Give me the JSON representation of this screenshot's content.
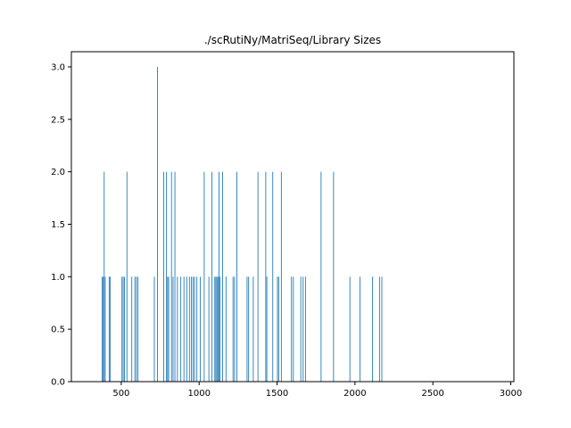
{
  "chart_data": {
    "type": "bar",
    "title": "./scRutiNy/MatriSeq/Library Sizes",
    "xlabel": "",
    "ylabel": "",
    "xlim": [
      180,
      3020
    ],
    "ylim": [
      0,
      3.0
    ],
    "xticks": [
      "500",
      "1000",
      "1500",
      "2000",
      "2500",
      "3000"
    ],
    "xtick_values": [
      500,
      1000,
      1500,
      2000,
      2500,
      3000
    ],
    "yticks": [
      "0.0",
      "0.5",
      "1.0",
      "1.5",
      "2.0",
      "2.5",
      "3.0"
    ],
    "ytick_values": [
      0,
      0.5,
      1.0,
      1.5,
      2.0,
      2.5,
      3.0
    ],
    "bar_color": "#1f77b4",
    "bar_width": 5,
    "bars": [
      {
        "x": 375,
        "y": 1
      },
      {
        "x": 382,
        "y": 1
      },
      {
        "x": 388,
        "y": 2
      },
      {
        "x": 395,
        "y": 1
      },
      {
        "x": 420,
        "y": 1
      },
      {
        "x": 426,
        "y": 1
      },
      {
        "x": 502,
        "y": 1
      },
      {
        "x": 510,
        "y": 1
      },
      {
        "x": 518,
        "y": 1
      },
      {
        "x": 534,
        "y": 2
      },
      {
        "x": 565,
        "y": 1
      },
      {
        "x": 585,
        "y": 1
      },
      {
        "x": 595,
        "y": 1
      },
      {
        "x": 605,
        "y": 1
      },
      {
        "x": 710,
        "y": 1
      },
      {
        "x": 730,
        "y": 3
      },
      {
        "x": 770,
        "y": 2
      },
      {
        "x": 788,
        "y": 2
      },
      {
        "x": 795,
        "y": 1
      },
      {
        "x": 802,
        "y": 1
      },
      {
        "x": 820,
        "y": 2
      },
      {
        "x": 830,
        "y": 1
      },
      {
        "x": 842,
        "y": 2
      },
      {
        "x": 858,
        "y": 1
      },
      {
        "x": 880,
        "y": 1
      },
      {
        "x": 900,
        "y": 1
      },
      {
        "x": 918,
        "y": 1
      },
      {
        "x": 935,
        "y": 1
      },
      {
        "x": 948,
        "y": 1
      },
      {
        "x": 958,
        "y": 1
      },
      {
        "x": 968,
        "y": 1
      },
      {
        "x": 983,
        "y": 1
      },
      {
        "x": 1005,
        "y": 1
      },
      {
        "x": 1030,
        "y": 2
      },
      {
        "x": 1060,
        "y": 1
      },
      {
        "x": 1080,
        "y": 2
      },
      {
        "x": 1098,
        "y": 1
      },
      {
        "x": 1105,
        "y": 1
      },
      {
        "x": 1112,
        "y": 1
      },
      {
        "x": 1118,
        "y": 1
      },
      {
        "x": 1125,
        "y": 2
      },
      {
        "x": 1132,
        "y": 1
      },
      {
        "x": 1148,
        "y": 2
      },
      {
        "x": 1170,
        "y": 1
      },
      {
        "x": 1215,
        "y": 1
      },
      {
        "x": 1225,
        "y": 1
      },
      {
        "x": 1240,
        "y": 2
      },
      {
        "x": 1305,
        "y": 1
      },
      {
        "x": 1315,
        "y": 1
      },
      {
        "x": 1345,
        "y": 1
      },
      {
        "x": 1375,
        "y": 2
      },
      {
        "x": 1425,
        "y": 2
      },
      {
        "x": 1432,
        "y": 1
      },
      {
        "x": 1470,
        "y": 2
      },
      {
        "x": 1500,
        "y": 1
      },
      {
        "x": 1508,
        "y": 1
      },
      {
        "x": 1525,
        "y": 2
      },
      {
        "x": 1590,
        "y": 1
      },
      {
        "x": 1602,
        "y": 1
      },
      {
        "x": 1650,
        "y": 1
      },
      {
        "x": 1665,
        "y": 1
      },
      {
        "x": 1680,
        "y": 1
      },
      {
        "x": 1780,
        "y": 2
      },
      {
        "x": 1860,
        "y": 2
      },
      {
        "x": 1965,
        "y": 1
      },
      {
        "x": 2030,
        "y": 1
      },
      {
        "x": 2110,
        "y": 1
      },
      {
        "x": 2155,
        "y": 1
      },
      {
        "x": 2170,
        "y": 1
      }
    ]
  }
}
